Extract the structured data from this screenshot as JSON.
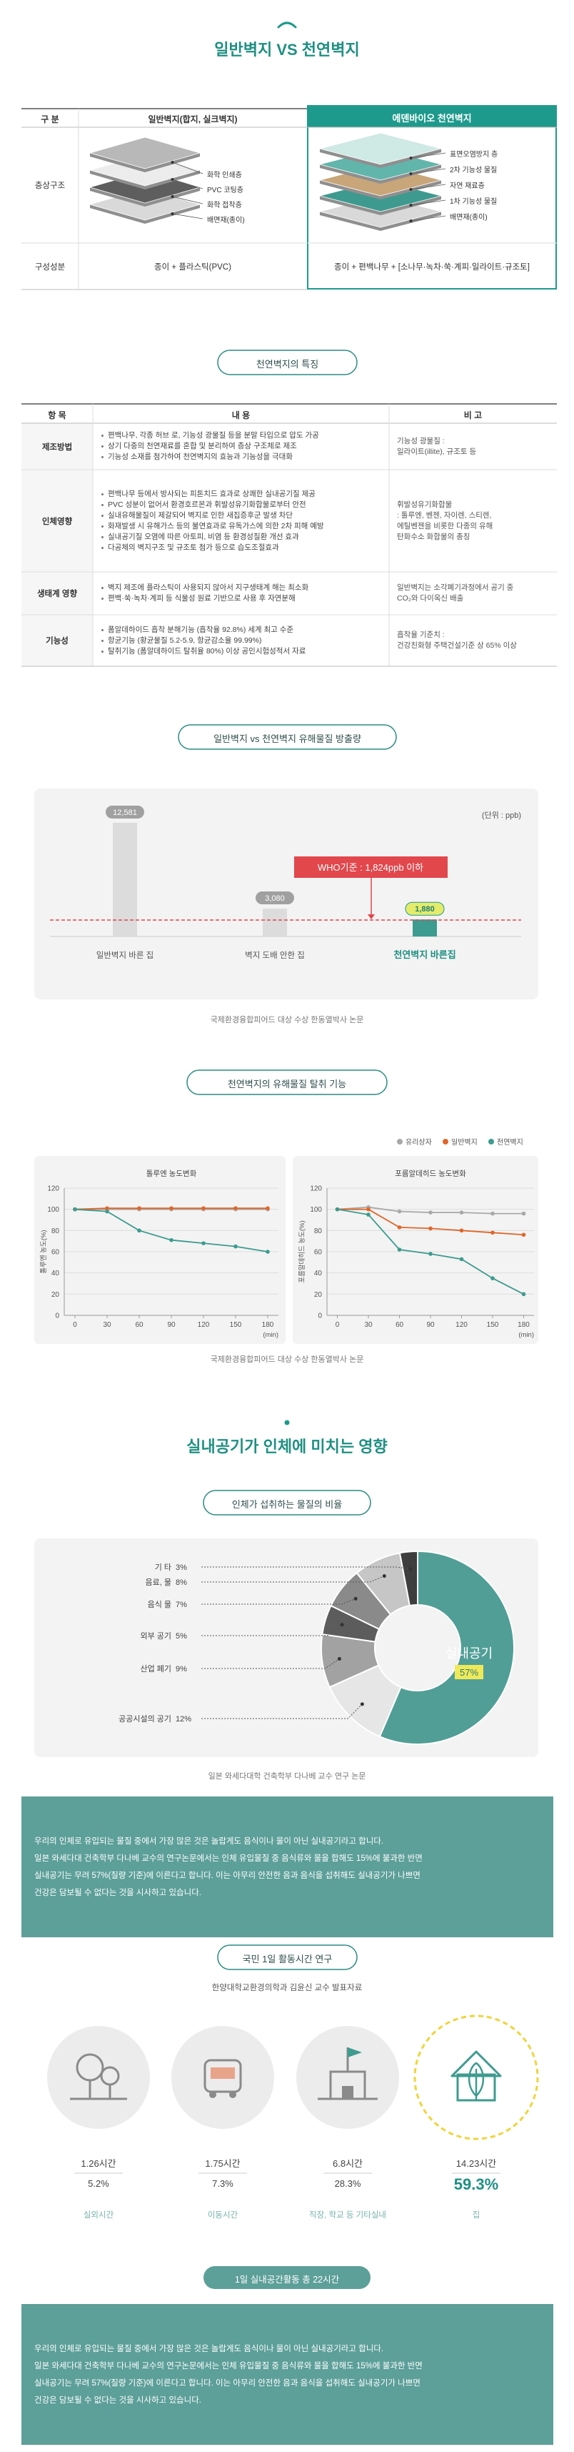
{
  "header": {
    "title": "일반벽지 VS 천연벽지"
  },
  "compare": {
    "headers": [
      "구 분",
      "일반벽지(합지, 실크벽지)",
      "에덴바이오 천연벽지"
    ],
    "rows": [
      {
        "label": "층상구조",
        "left": [
          "화학 인쇄층",
          "PVC 코팅층",
          "화학 접착층",
          "배면재(종이)"
        ],
        "right": [
          "표면오염방지 층",
          "2차 기능성 물질",
          "자연 재료층",
          "1차 기능성 물질",
          "배면재(종이)"
        ]
      },
      {
        "label": "구성성분",
        "left": "종이 + 플라스틱(PVC)",
        "right": "종이 + 편백나무 + [소나무·녹차·쑥·계피·일라이트·규조토]"
      }
    ]
  },
  "features": {
    "title": "천연벽지의 특징",
    "headers": [
      "항 목",
      "내 용",
      "비 고"
    ],
    "rows": [
      {
        "label": "제조방법",
        "items": [
          "편백나무, 각종 허브 로, 기능성 광물질 등을 분말 타입으로 압도 가공",
          "상기 다중의 천연재료를 혼합 및 분리하여 층상 구조체로 제조",
          "기능성 소재를 첨가하여 천연벽지의 효능과 기능성을 극대화"
        ],
        "note": [
          "기능성 광물질 :",
          "일라이트(illite), 규조토 등"
        ]
      },
      {
        "label": "인체영향",
        "items": [
          "편백나무 등에서 방사되는 피톤치드 효과로 상쾌한 실내공기질 제공",
          "PVC 성분이 없어서 환경호르몬과 휘발성유기화합물로부터 안전",
          "실내유해물질이 제갈되어 벽지로 인한 새집증후군 발생 차단",
          "화재발생 시 유해가스 등의 불연효과로 유독가스에 의한 2차 피해 예방",
          "실내공기질 오염에 따른 아토피, 비염 등 환경성질환 개선 효과",
          "다공체의 벽지구조 및 규조토 첨가 등으로 습도조절효과"
        ],
        "note": [
          "휘발성유기화합물",
          ": 톨루엔, 벤젠, 자이렌, 스티렌,",
          "에틸벤젠을 비롯한 다종의 유해",
          "탄화수소 화합물의 총칭"
        ]
      },
      {
        "label": "생태계 영향",
        "items": [
          "벽지 제조에 플라스틱이 사용되지 않아서 지구생태계 해는 최소화",
          "편백·쑥·녹차·계피 등 식물성 원료 기반으로 사용 후 자연분해"
        ],
        "note": [
          "일반벽지는 소각폐기과정에서 공기 중",
          "CO₂와 다이옥신 배출"
        ]
      },
      {
        "label": "기능성",
        "items": [
          "폼알데하이드 흡착 분해기능 (흡착율 92.8%) 세계 최고 수준",
          "항균기능 (황균물질 5.2-5.9, 항균감소율 99.99%)",
          "탈취기능 (폼알데하이드 탈취율 80%) 이상 공인시험성적서 자료"
        ],
        "note": [
          "흡착율 기준치 :",
          "건강친화형 주택건설기준 상 65% 이상"
        ]
      }
    ]
  },
  "emission": {
    "title": "일반벽지 vs 천연벽지 유해물질 방출량",
    "source": "국제환경융합피어드 대상 수상 한동열박사 논문"
  },
  "deodor": {
    "title": "천연벽지의 유해물질 탈취 기능",
    "source": "국제환경융합피어드 대상 수상 한동열박사 논문"
  },
  "indoor": {
    "title": "실내공기가 인체에 미치는 영향",
    "pie_title": "인체가 섭취하는 물질의 비율",
    "source": "일본 와세다대학 건축학부 다나베 교수 연구 논문",
    "text": [
      "우리의 인체로 유입되는 물질 중에서 가장 많은 것은 놀랍게도 음식이나 물이 아닌 실내공기라고 합니다.",
      "일본 와세다대 건축학부 다나베 교수의 연구논문에서는 인체 유입물질 중 음식류와 물을 합해도 15%에 불과한 반면",
      "실내공기는 무려 57%(질량 기준)에 이른다고 합니다. 이는 아무리 안전한 음과 음식을 섭취해도 실내공기가 나쁘면",
      "건강은 담보될 수 없다는 것을 시사하고 있습니다."
    ]
  },
  "activity": {
    "title": "국민 1일 활동시간 연구",
    "subtitle": "한양대학교환경의학과 김윤신 교수 발표자료",
    "highlight": 3,
    "items": [
      {
        "hours": "1.26시간",
        "percent": "5.2%",
        "label": "실외시간"
      },
      {
        "hours": "1.75시간",
        "percent": "7.3%",
        "label": "이동시간"
      },
      {
        "hours": "6.8시간",
        "percent": "28.3%",
        "label": "직장, 학교 등 기타실내"
      },
      {
        "hours": "14.23시간",
        "percent": "59.3%",
        "label": "집"
      }
    ],
    "total": "1일 실내공간활동 총 22시간"
  },
  "chart_data": [
    {
      "type": "bar",
      "categories": [
        "일반벽지 바른 집",
        "벽지 도배 안한 집",
        "천연벽지 바른집"
      ],
      "values": [
        12581,
        3080,
        1880
      ],
      "value_labels": [
        "12,581",
        "3,080",
        "1,880"
      ],
      "colors": [
        "#dcdcdc",
        "#dcdcdc",
        "#3d9b8f"
      ],
      "highlight": 2,
      "ylim": [
        0,
        14000
      ],
      "unit": "(단위 : ppb)",
      "reference": {
        "value": 1824,
        "label": "WHO기준 : 1,824ppb 이하",
        "color": "#e2474c"
      }
    },
    {
      "type": "line",
      "title": "톨루엔 농도변화",
      "y_label": "톨루엔 농도(%)",
      "x_label": "(min)",
      "x": [
        0,
        30,
        60,
        90,
        120,
        150,
        180
      ],
      "xlim": [
        -10,
        190
      ],
      "xticks": [
        0,
        30,
        60,
        90,
        120,
        150,
        180
      ],
      "ylim": [
        0,
        120
      ],
      "yticks": [
        0,
        20,
        40,
        60,
        80,
        100,
        120
      ],
      "grid": true,
      "series": [
        {
          "name": "유리상자",
          "color": "#a8a8a8",
          "values": [
            100,
            100,
            100,
            100,
            100,
            100,
            100
          ]
        },
        {
          "name": "일반벽지",
          "color": "#e0662a",
          "values": [
            100,
            101,
            101,
            101,
            101,
            101,
            101
          ]
        },
        {
          "name": "천연벽지",
          "color": "#3d9b8f",
          "values": [
            100,
            98,
            80,
            71,
            68,
            65,
            60
          ]
        }
      ]
    },
    {
      "type": "line",
      "title": "포름알데히드 농도변화",
      "y_label": "포름알데히드 농도(%)",
      "x_label": "(min)",
      "x": [
        0,
        30,
        60,
        90,
        120,
        150,
        180
      ],
      "xlim": [
        -10,
        190
      ],
      "xticks": [
        0,
        30,
        60,
        90,
        120,
        150,
        180
      ],
      "ylim": [
        0,
        120
      ],
      "yticks": [
        0,
        20,
        40,
        60,
        80,
        100,
        120
      ],
      "grid": true,
      "series": [
        {
          "name": "유리상자",
          "color": "#a8a8a8",
          "values": [
            100,
            102,
            98,
            97,
            97,
            96,
            96
          ]
        },
        {
          "name": "일반벽지",
          "color": "#e0662a",
          "values": [
            100,
            100,
            83,
            82,
            80,
            78,
            76
          ]
        },
        {
          "name": "천연벽지",
          "color": "#3d9b8f",
          "values": [
            100,
            95,
            62,
            58,
            53,
            35,
            20
          ]
        }
      ]
    },
    {
      "type": "pie",
      "categories": [
        "실내공기",
        "공공시설의 공기",
        "산업 폐기",
        "외부 공기",
        "음식 물",
        "음료, 물",
        "기 타"
      ],
      "values": [
        57,
        12,
        9,
        5,
        7,
        8,
        3
      ],
      "value_labels": [
        "57%",
        "12%",
        "9%",
        "5%",
        "7%",
        "8%",
        "3%"
      ],
      "colors": [
        "#519e96",
        "#e6e6e6",
        "#a2a2a2",
        "#5c5c5c",
        "#8a8a8a",
        "#c6c6c6",
        "#3e3e3e"
      ]
    }
  ]
}
